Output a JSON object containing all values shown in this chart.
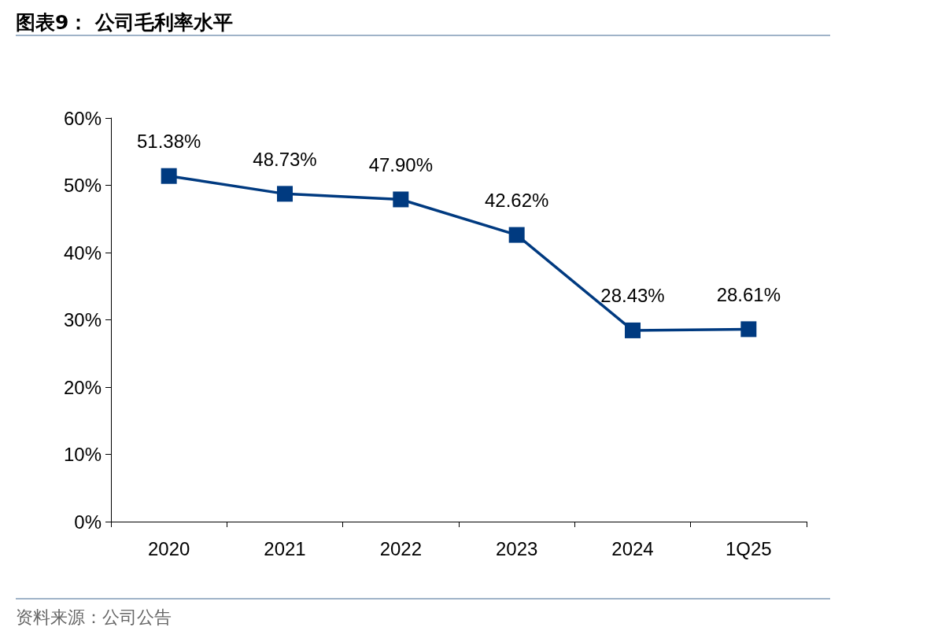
{
  "chart_data": {
    "type": "line",
    "title": "图表9：  公司毛利率水平",
    "categories": [
      "2020",
      "2021",
      "2022",
      "2023",
      "2024",
      "1Q25"
    ],
    "series": [
      {
        "color": "#003a80",
        "values": [
          51.38,
          48.73,
          47.9,
          42.62,
          28.43,
          28.61
        ],
        "value_labels": [
          "51.38%",
          "48.73%",
          "47.90%",
          "42.62%",
          "28.43%",
          "28.61%"
        ]
      }
    ],
    "ylim": [
      0,
      60
    ],
    "yticks": [
      {
        "value": 0,
        "label": "0%"
      },
      {
        "value": 10,
        "label": "10%"
      },
      {
        "value": 20,
        "label": "20%"
      },
      {
        "value": 30,
        "label": "30%"
      },
      {
        "value": 40,
        "label": "40%"
      },
      {
        "value": 50,
        "label": "50%"
      },
      {
        "value": 60,
        "label": "60%"
      }
    ],
    "grid": false,
    "marker": "square",
    "line_style": "solid",
    "annotations": [
      "资料来源：公司公告"
    ]
  }
}
